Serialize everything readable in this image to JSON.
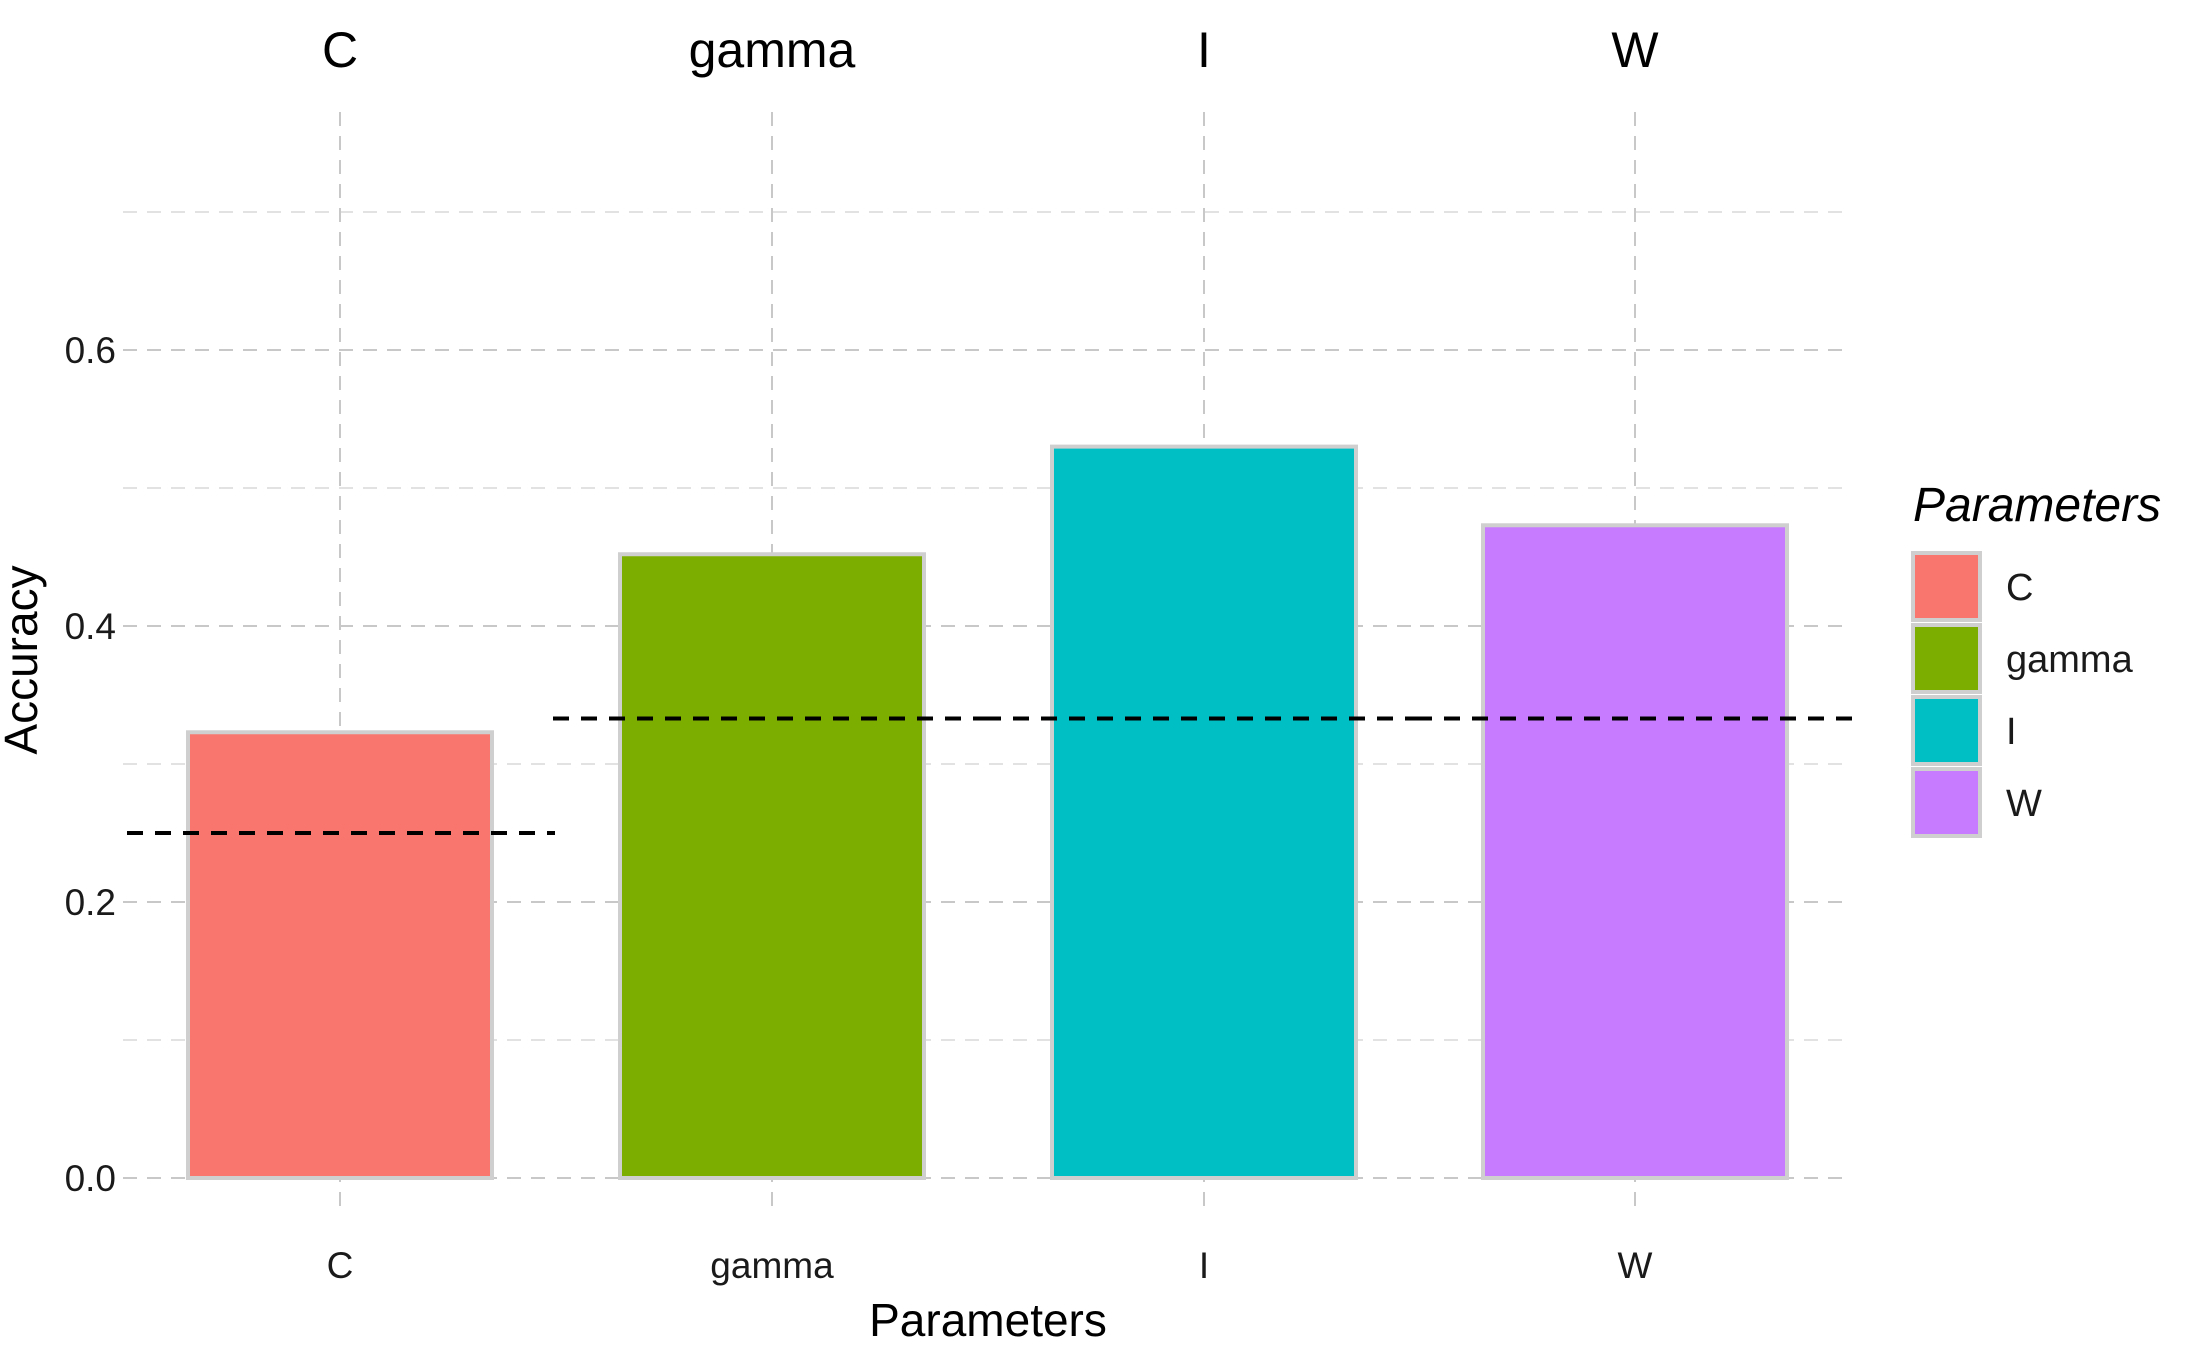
{
  "chart_data": {
    "type": "bar",
    "categories": [
      "C",
      "gamma",
      "I",
      "W"
    ],
    "values": [
      0.323,
      0.452,
      0.53,
      0.473
    ],
    "reference_lines": [
      0.25,
      0.333,
      0.333,
      0.333
    ],
    "colors": [
      "#F8766D",
      "#7CAE00",
      "#00BFC4",
      "#C77CFF"
    ],
    "xlabel": "Parameters",
    "ylabel": "Accuracy",
    "ylim": [
      0,
      0.7
    ],
    "yticks": [
      "0.0",
      "0.2",
      "0.4",
      "0.6"
    ],
    "facet_labels": [
      "C",
      "gamma",
      "I",
      "W"
    ],
    "grid": true,
    "legend": {
      "title": "Parameters",
      "placement": "right",
      "items": [
        "C",
        "gamma",
        "I",
        "W"
      ]
    }
  }
}
